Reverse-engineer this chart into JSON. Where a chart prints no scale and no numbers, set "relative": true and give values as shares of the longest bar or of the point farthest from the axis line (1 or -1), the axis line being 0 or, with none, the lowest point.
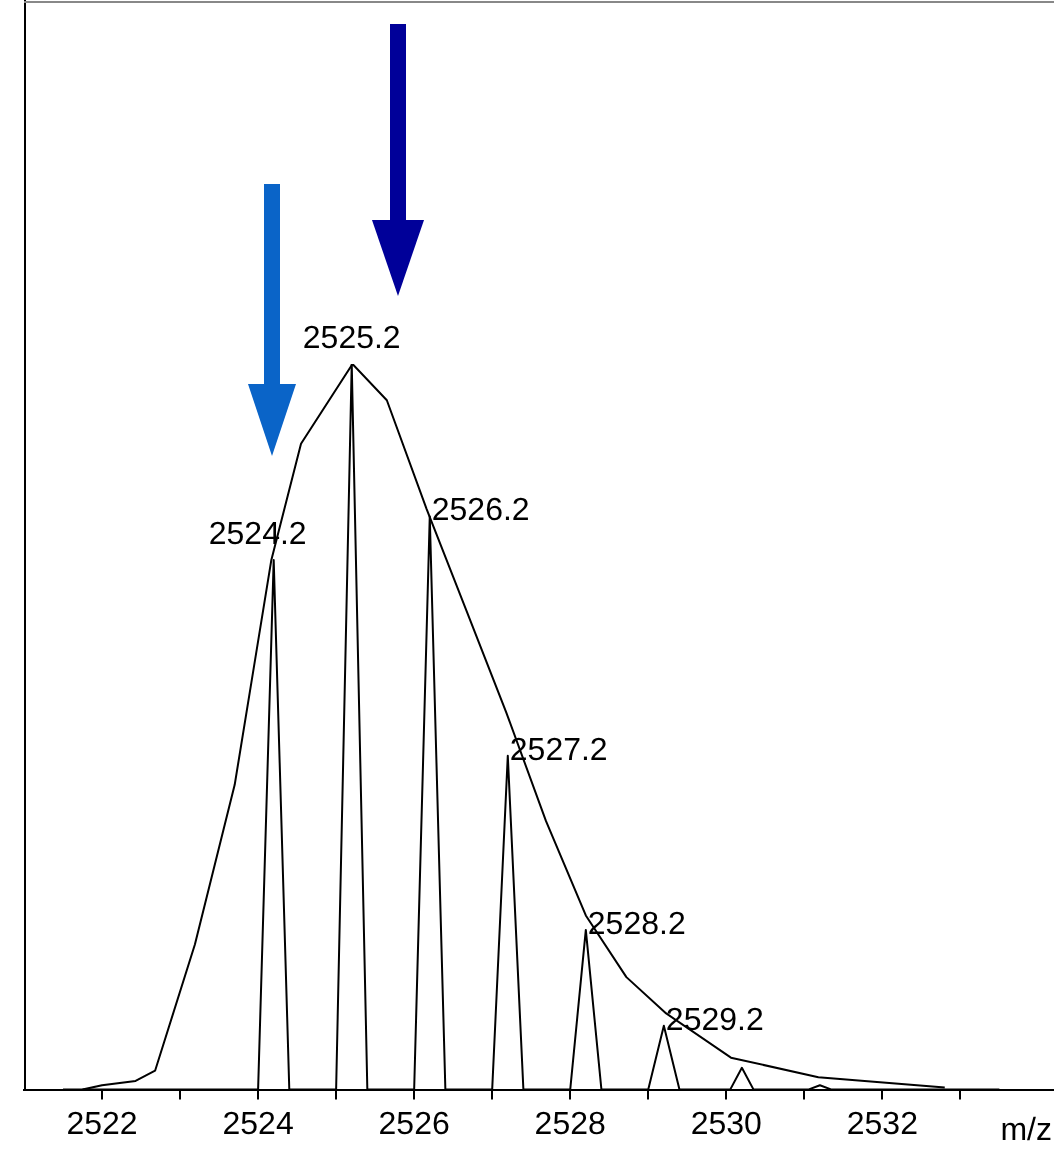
{
  "chart_data": {
    "type": "line",
    "xlabel": "m/z",
    "relative": true,
    "marker": "none",
    "grid": false,
    "legend": false,
    "xlim": [
      2521,
      2534.2
    ],
    "xticks": [
      2522,
      {
        "value": 2523,
        "label": null
      },
      2524,
      {
        "value": 2525,
        "label": null
      },
      2526,
      {
        "value": 2527,
        "label": null
      },
      2528,
      {
        "value": 2529,
        "label": null
      },
      2530,
      {
        "value": 2531,
        "label": null
      },
      2532,
      {
        "value": 2533,
        "label": null
      }
    ],
    "series": [
      {
        "color": "#000000",
        "x": [
          2521.5,
          2524.0,
          2524.2,
          2524.4,
          2525.0,
          2525.2,
          2525.4,
          2526.0,
          2526.2,
          2526.4,
          2527.0,
          2527.2,
          2527.4,
          2528.0,
          2528.2,
          2528.4,
          2529.0,
          2529.2,
          2529.4,
          2530.05,
          2530.2,
          2530.35,
          2531.05,
          2531.2,
          2531.35,
          2533.5
        ],
        "values": [
          0,
          0,
          0.73,
          0,
          0,
          1.0,
          0,
          0,
          0.79,
          0,
          0,
          0.46,
          0,
          0,
          0.22,
          0,
          0,
          0.088,
          0,
          0,
          0.03,
          0,
          0,
          0.006,
          0,
          0
        ]
      },
      {
        "color": "#000000",
        "x": [
          2521.75,
          2522.0,
          2522.43,
          2522.68,
          2523.19,
          2523.7,
          2524.17,
          2524.55,
          2525.21,
          2525.65,
          2526.16,
          2526.67,
          2527.18,
          2527.69,
          2528.2,
          2528.72,
          2529.23,
          2530.06,
          2531.18,
          2532.8
        ],
        "values": [
          0,
          0.006,
          0.012,
          0.026,
          0.2,
          0.42,
          0.73,
          0.89,
          1.0,
          0.95,
          0.8,
          0.66,
          0.52,
          0.37,
          0.24,
          0.155,
          0.105,
          0.044,
          0.017,
          0.003
        ]
      }
    ],
    "annotations": [
      {
        "text": "2524.2",
        "x": 2524.2,
        "y": 0.73
      },
      {
        "text": "2525.2",
        "x": 2525.2,
        "y": 1.0
      },
      {
        "text": "2526.2",
        "x": 2526.2,
        "y": 0.79
      },
      {
        "text": "2527.2",
        "x": 2527.2,
        "y": 0.46
      },
      {
        "text": "2528.2",
        "x": 2528.2,
        "y": 0.22
      },
      {
        "text": "2529.2",
        "x": 2529.2,
        "y": 0.088
      }
    ]
  }
}
